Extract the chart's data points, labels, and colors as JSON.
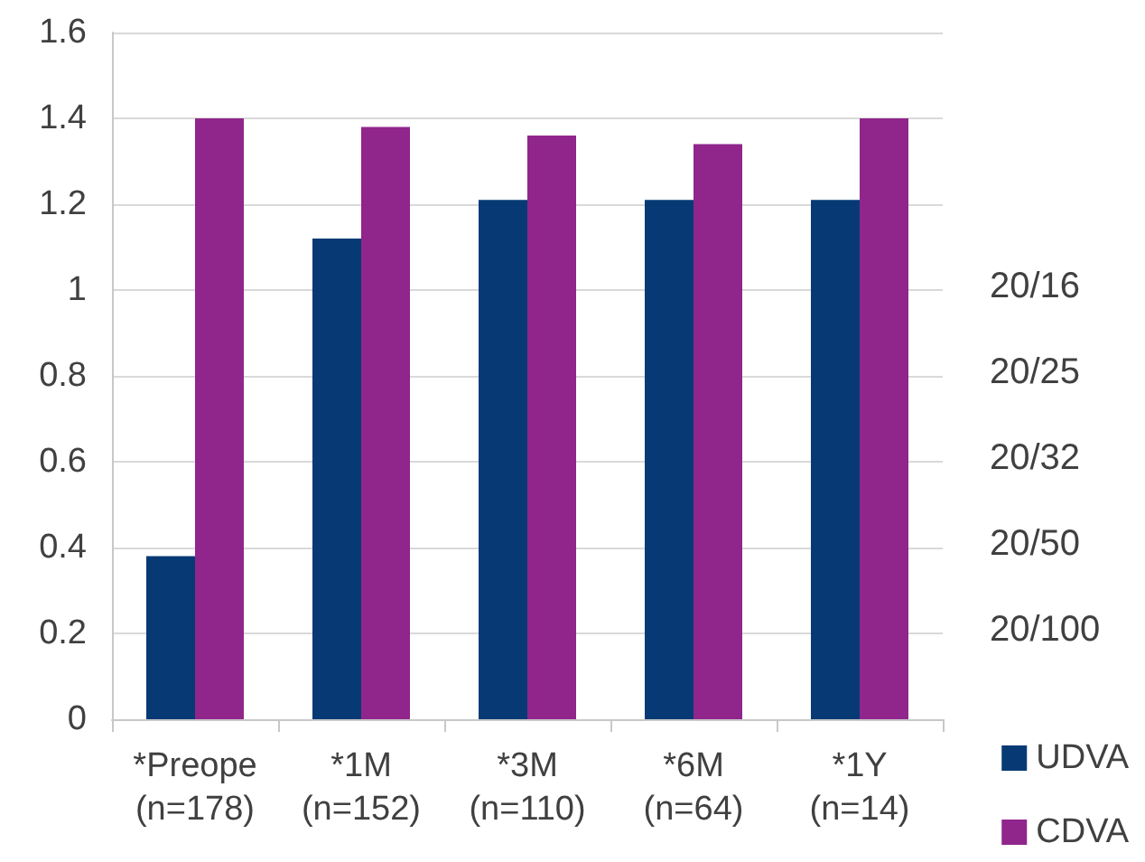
{
  "chart_data": {
    "type": "bar",
    "categories": [
      "*Preope\n(n=178)",
      "*1M\n(n=152)",
      "*3M\n(n=110)",
      "*6M\n(n=64)",
      "*1Y\n(n=14)"
    ],
    "series": [
      {
        "name": "UDVA",
        "color": "#073a75",
        "values": [
          0.38,
          1.12,
          1.21,
          1.21,
          1.21
        ]
      },
      {
        "name": "CDVA",
        "color": "#90258c",
        "values": [
          1.4,
          1.38,
          1.36,
          1.34,
          1.4
        ]
      }
    ],
    "ylim": [
      0,
      1.6
    ],
    "yticks": [
      0,
      0.2,
      0.4,
      0.6,
      0.8,
      1,
      1.2,
      1.4,
      1.6
    ],
    "annotations": [
      "20/16",
      "20/25",
      "20/32",
      "20/50",
      "20/100"
    ],
    "grid": "y",
    "legend": "bottom right"
  }
}
